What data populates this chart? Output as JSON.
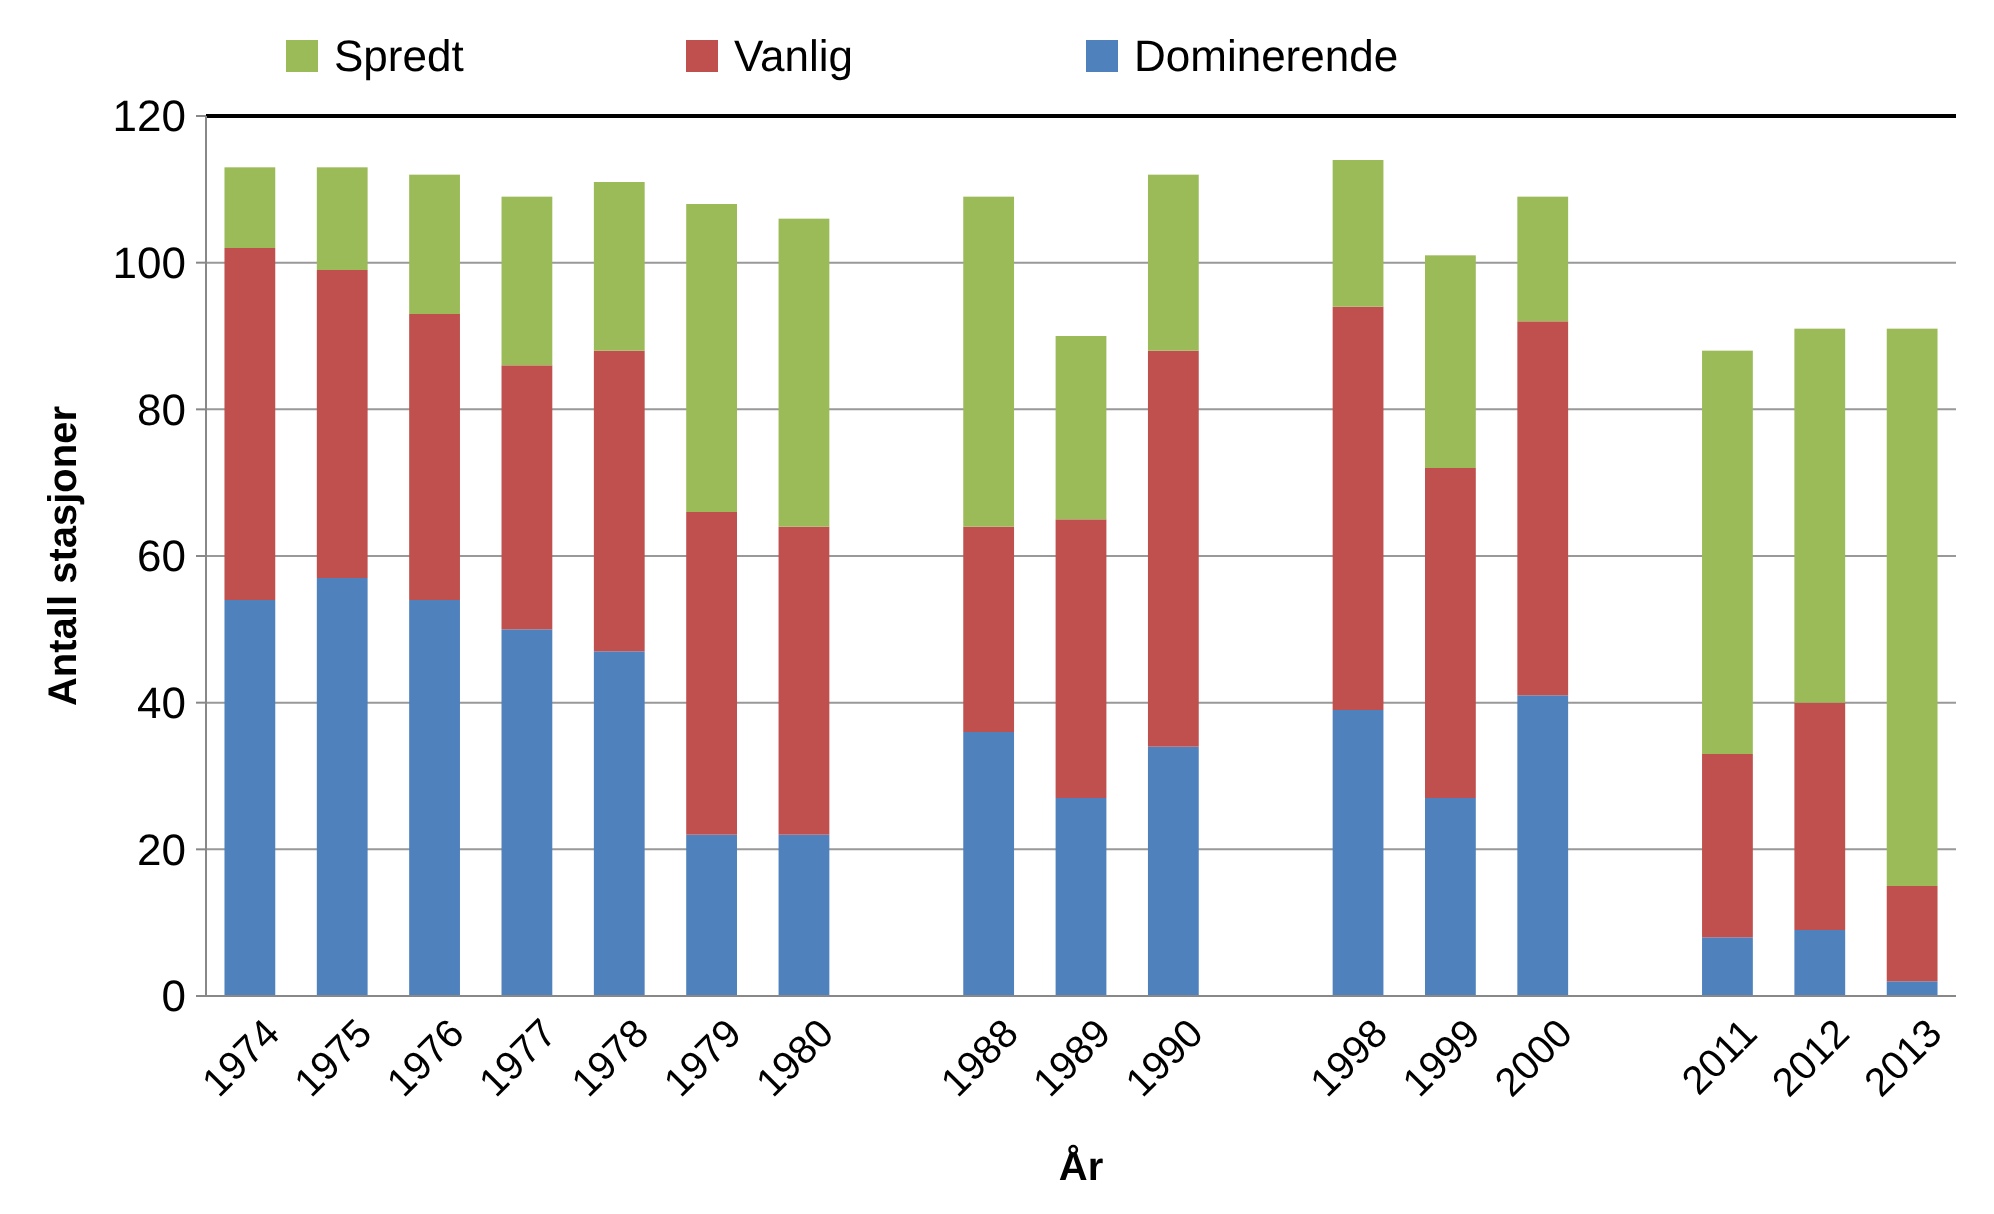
{
  "chart_data": {
    "type": "bar",
    "stacked": true,
    "xlabel": "År",
    "ylabel": "Antall stasjoner",
    "categories": [
      "1974",
      "1975",
      "1976",
      "1977",
      "1978",
      "1979",
      "1980",
      null,
      "1988",
      "1989",
      "1990",
      null,
      "1998",
      "1999",
      "2000",
      null,
      "2011",
      "2012",
      "2013"
    ],
    "series": [
      {
        "name": "Dominerende",
        "color": "#4f81bd",
        "values": [
          54,
          57,
          54,
          50,
          47,
          22,
          22,
          null,
          36,
          27,
          34,
          null,
          39,
          27,
          41,
          null,
          8,
          9,
          2
        ]
      },
      {
        "name": "Vanlig",
        "color": "#c0504d",
        "values": [
          48,
          42,
          39,
          36,
          41,
          44,
          42,
          null,
          28,
          38,
          54,
          null,
          55,
          45,
          51,
          null,
          25,
          31,
          13
        ]
      },
      {
        "name": "Spredt",
        "color": "#9bbb59",
        "values": [
          11,
          14,
          19,
          23,
          23,
          42,
          42,
          null,
          45,
          25,
          24,
          null,
          20,
          29,
          17,
          null,
          55,
          51,
          76
        ]
      }
    ],
    "ylim": [
      0,
      120
    ],
    "yticks": [
      0,
      20,
      40,
      60,
      80,
      100,
      120
    ],
    "grid": "y",
    "legend": "top"
  }
}
